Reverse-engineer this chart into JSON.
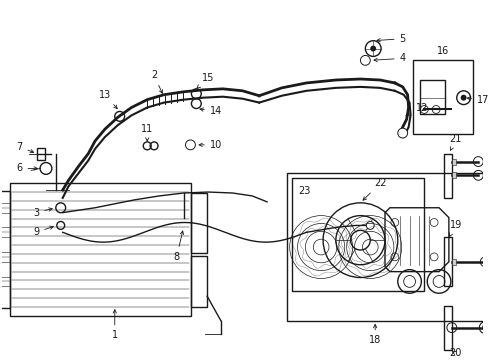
{
  "background_color": "#ffffff",
  "line_color": "#1a1a1a",
  "label_fontsize": 7,
  "fig_w": 4.9,
  "fig_h": 3.6,
  "dpi": 100
}
